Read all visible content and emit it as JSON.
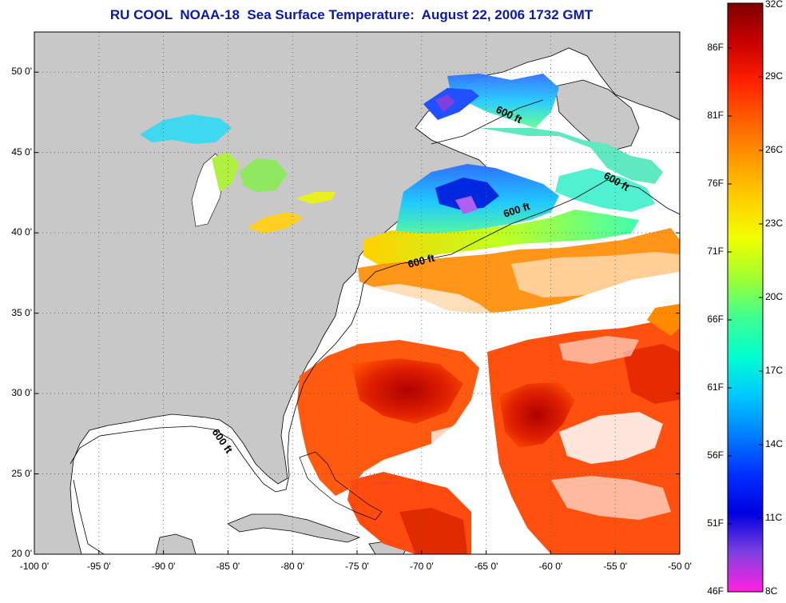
{
  "title": "RU COOL  NOAA-18  Sea Surface Temperature:  August 22, 2006 1732 GMT",
  "map": {
    "lon_range": [
      -100,
      -50
    ],
    "lat_range": [
      20,
      52.5
    ],
    "lon_ticks": [
      "-100 0'",
      "-95 0'",
      "-90 0'",
      "-85 0'",
      "-80 0'",
      "-75 0'",
      "-70 0'",
      "-65 0'",
      "-60 0'",
      "-55 0'",
      "-50 0'"
    ],
    "lat_ticks": [
      "20 0'",
      "25 0'",
      "30 0'",
      "35 0'",
      "40 0'",
      "45 0'",
      "50 0'"
    ],
    "grid": "dotted",
    "land_color": "#c8c8c8",
    "ocean_color": "#ffffff",
    "contour_labels": [
      "600 ft",
      "600 ft",
      "600 ft",
      "600 ft",
      "600 ft"
    ]
  },
  "colorbar": {
    "celsius_labels": [
      "32C",
      "29C",
      "26C",
      "23C",
      "20C",
      "17C",
      "14C",
      "11C",
      "8C"
    ],
    "fahrenheit_labels": [
      "86F",
      "81F",
      "76F",
      "71F",
      "66F",
      "61F",
      "56F",
      "51F",
      "46F"
    ],
    "colors": [
      "#800000",
      "#c80000",
      "#ff2000",
      "#ff6000",
      "#ff9a00",
      "#ffd000",
      "#f0ff00",
      "#a0ff30",
      "#40ff90",
      "#00ffd0",
      "#00c8ff",
      "#0080ff",
      "#0030ff",
      "#0000e0",
      "#8040e0",
      "#ff20e0"
    ]
  }
}
